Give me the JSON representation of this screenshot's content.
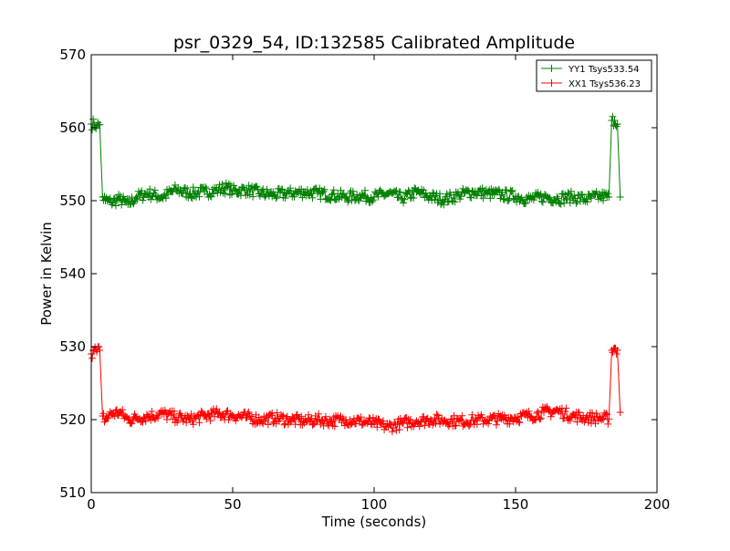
{
  "chart_data": {
    "type": "line",
    "title": "psr_0329_54, ID:132585 Calibrated Amplitude",
    "xlabel": "Time (seconds)",
    "ylabel": "Power in Kelvin",
    "xlim": [
      0,
      200
    ],
    "ylim": [
      510,
      570
    ],
    "xticks": [
      "0",
      "50",
      "100",
      "150",
      "200"
    ],
    "yticks": [
      "510",
      "520",
      "530",
      "540",
      "550",
      "560",
      "570"
    ],
    "grid": false,
    "legend_position": "top-right",
    "marker": "+",
    "series": [
      {
        "name": "YY1 Tsys533.54",
        "color": "#008000",
        "x": [
          0,
          1,
          2,
          3,
          4,
          5,
          7,
          10,
          13,
          16,
          20,
          25,
          30,
          35,
          40,
          45,
          48,
          50,
          55,
          60,
          65,
          70,
          75,
          80,
          85,
          90,
          95,
          100,
          105,
          110,
          115,
          120,
          125,
          130,
          135,
          140,
          145,
          150,
          155,
          160,
          165,
          170,
          175,
          180,
          183,
          184,
          185,
          186,
          187
        ],
        "y": [
          560.5,
          560.5,
          560.3,
          560.4,
          550.5,
          550.0,
          549.8,
          550.2,
          549.5,
          550.5,
          551.0,
          550.5,
          551.5,
          551.0,
          551.2,
          551.5,
          551.8,
          551.3,
          551.5,
          551.0,
          550.8,
          551.0,
          551.2,
          551.0,
          550.8,
          550.5,
          550.7,
          550.5,
          551.0,
          550.3,
          551.2,
          550.5,
          550.2,
          550.8,
          551.2,
          551.0,
          550.8,
          550.6,
          550.2,
          550.5,
          550.3,
          550.5,
          550.2,
          550.6,
          550.5,
          561.0,
          561.0,
          560.5,
          550.5
        ]
      },
      {
        "name": "XX1 Tsys536.23",
        "color": "#ff0000",
        "x": [
          0,
          1,
          2,
          3,
          4,
          5,
          7,
          10,
          13,
          16,
          20,
          25,
          30,
          35,
          40,
          45,
          50,
          55,
          60,
          65,
          70,
          75,
          80,
          85,
          90,
          95,
          100,
          105,
          110,
          115,
          120,
          125,
          130,
          135,
          140,
          145,
          150,
          155,
          160,
          165,
          170,
          175,
          180,
          183,
          184,
          185,
          186,
          187
        ],
        "y": [
          529.0,
          529.5,
          529.3,
          529.5,
          520.5,
          520.0,
          520.8,
          521.0,
          520.0,
          520.2,
          520.5,
          520.8,
          520.3,
          520.0,
          520.5,
          520.8,
          520.6,
          520.3,
          520.0,
          520.2,
          520.0,
          519.8,
          520.0,
          519.8,
          520.0,
          519.8,
          519.5,
          519.0,
          519.5,
          519.8,
          520.0,
          519.9,
          519.8,
          519.9,
          520.0,
          520.1,
          520.3,
          520.5,
          521.0,
          521.2,
          520.5,
          520.3,
          520.2,
          520.1,
          529.5,
          529.8,
          529.5,
          521.0
        ]
      }
    ]
  }
}
